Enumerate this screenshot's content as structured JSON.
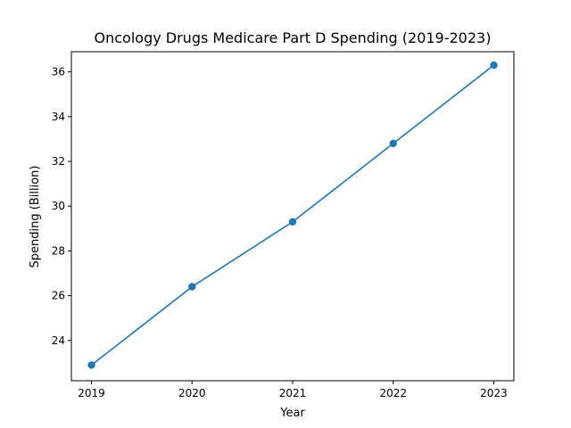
{
  "chart_data": {
    "type": "line",
    "title": "Oncology Drugs Medicare Part D Spending (2019-2023)",
    "xlabel": "Year",
    "ylabel": "Spending (Billion)",
    "x": [
      2019,
      2020,
      2021,
      2022,
      2023
    ],
    "x_tick_labels": [
      "2019",
      "2020",
      "2021",
      "2022",
      "2023"
    ],
    "y_ticks": [
      24,
      26,
      28,
      30,
      32,
      34,
      36
    ],
    "y_tick_labels": [
      "24",
      "26",
      "28",
      "30",
      "32",
      "34",
      "36"
    ],
    "series": [
      {
        "values": [
          22.9,
          26.4,
          29.3,
          32.8,
          36.3
        ]
      }
    ],
    "xlim": [
      2018.8,
      2023.2
    ],
    "ylim": [
      22.2,
      36.9
    ],
    "grid": false,
    "marker": "circle",
    "color": "#1f77b4"
  }
}
